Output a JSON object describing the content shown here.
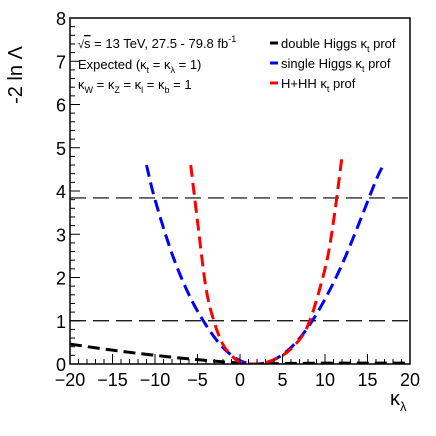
{
  "chart_data": {
    "type": "line",
    "xlabel": "κλ",
    "ylabel": "-2 ln Λ",
    "xlim": [
      -20,
      20
    ],
    "ylim": [
      0,
      8
    ],
    "x_ticks": [
      -20,
      -15,
      -10,
      -5,
      0,
      5,
      10,
      15,
      20
    ],
    "y_ticks": [
      0,
      1,
      2,
      3,
      4,
      5,
      6,
      7,
      8
    ],
    "annotations": [
      "√s = 13 TeV, 27.5 - 79.8 fb⁻¹",
      "Expected (κt = κλ = 1)",
      "κW = κZ = κl = κb = 1"
    ],
    "reference_lines": [
      {
        "y": 1,
        "color": "#000000"
      },
      {
        "y": 3.84,
        "color": "#000000"
      }
    ],
    "legend_position": "top-right",
    "series": [
      {
        "name": "double Higgs κt prof",
        "color": "#000000",
        "x": [
          -20,
          -15,
          -10,
          -5,
          0,
          1,
          5,
          10,
          15,
          20
        ],
        "y": [
          0.46,
          0.32,
          0.2,
          0.1,
          0.02,
          0.0,
          0.01,
          0.02,
          0.02,
          0.02
        ]
      },
      {
        "name": "single Higgs κt prof",
        "color": "#0000ff",
        "x": [
          -11,
          -10,
          -8,
          -6,
          -4,
          -2,
          0,
          2,
          4,
          6,
          8,
          10,
          12,
          14,
          16,
          17
        ],
        "y": [
          4.6,
          3.8,
          2.55,
          1.6,
          0.9,
          0.38,
          0.08,
          0.0,
          0.1,
          0.38,
          0.85,
          1.5,
          2.3,
          3.25,
          4.25,
          4.65
        ]
      },
      {
        "name": "H+HH κt prof",
        "color": "#ff0000",
        "x": [
          -5.8,
          -5,
          -4,
          -3,
          -2,
          -1,
          0,
          2,
          4,
          6,
          8,
          10,
          11,
          12
        ],
        "y": [
          4.6,
          3.3,
          1.75,
          0.95,
          0.45,
          0.2,
          0.05,
          0.0,
          0.1,
          0.35,
          0.9,
          2.2,
          3.3,
          4.8
        ]
      }
    ]
  }
}
